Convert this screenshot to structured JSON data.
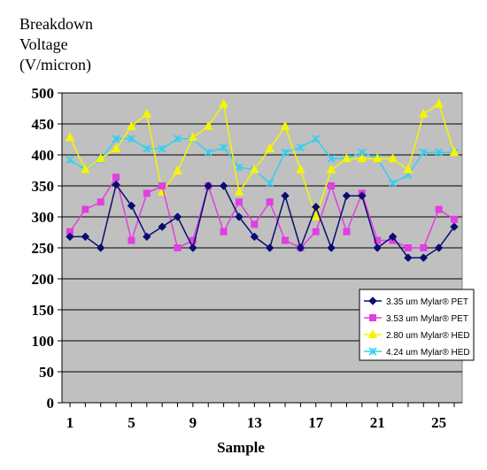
{
  "chart_data": {
    "type": "line",
    "title": "",
    "ylabel_lines": [
      "Breakdown",
      "Voltage",
      "(V/micron)"
    ],
    "xlabel": "Sample",
    "ylim": [
      0,
      500
    ],
    "y_ticks": [
      0,
      50,
      100,
      150,
      200,
      250,
      300,
      350,
      400,
      450,
      500
    ],
    "x_range": [
      1,
      26
    ],
    "x_tick_labels": [
      1,
      5,
      9,
      13,
      17,
      21,
      25
    ],
    "grid": "horizontal",
    "legend_position": "bottom-right",
    "plot_background": "#c0c0c0",
    "x": [
      1,
      2,
      3,
      4,
      5,
      6,
      7,
      8,
      9,
      10,
      11,
      12,
      13,
      14,
      15,
      16,
      17,
      18,
      19,
      20,
      21,
      22,
      23,
      24,
      25,
      26
    ],
    "series": [
      {
        "name": "3.35 um Mylar® PET",
        "color": "#0b0b72",
        "marker": "diamond",
        "values": [
          268,
          268,
          250,
          352,
          318,
          268,
          284,
          300,
          250,
          350,
          350,
          300,
          268,
          250,
          334,
          250,
          316,
          250,
          334,
          334,
          250,
          268,
          234,
          234,
          250,
          284
        ]
      },
      {
        "name": "3.53 um Mylar® PET",
        "color": "#e040e0",
        "marker": "square",
        "values": [
          276,
          312,
          324,
          364,
          262,
          338,
          350,
          250,
          262,
          350,
          276,
          324,
          288,
          324,
          262,
          250,
          276,
          350,
          276,
          338,
          262,
          262,
          250,
          250,
          312,
          296
        ]
      },
      {
        "name": "2.80 um Mylar® HED",
        "color": "#f5f500",
        "marker": "triangle",
        "values": [
          428,
          376,
          394,
          410,
          446,
          466,
          340,
          374,
          428,
          446,
          482,
          340,
          376,
          410,
          446,
          376,
          300,
          376,
          394,
          394,
          394,
          394,
          376,
          466,
          482,
          404
        ]
      },
      {
        "name": "4.24 um Mylar® HED",
        "color": "#30d0f0",
        "marker": "x",
        "values": [
          392,
          376,
          392,
          426,
          426,
          410,
          410,
          426,
          426,
          404,
          412,
          380,
          376,
          354,
          404,
          412,
          426,
          394,
          394,
          404,
          394,
          354,
          368,
          404,
          404,
          404
        ]
      }
    ]
  }
}
